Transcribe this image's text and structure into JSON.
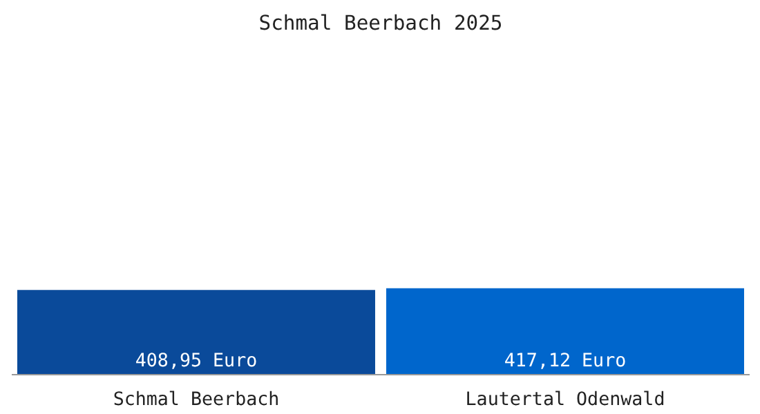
{
  "chart_data": {
    "type": "bar",
    "title": "Schmal Beerbach 2025",
    "categories": [
      "Schmal Beerbach",
      "Lautertal Odenwald"
    ],
    "values": [
      408.95,
      417.12
    ],
    "colors": [
      "#0a4a9a",
      "#0066cc"
    ],
    "value_labels": [
      "408,95 Euro",
      "417,12 Euro"
    ],
    "grid": false
  }
}
